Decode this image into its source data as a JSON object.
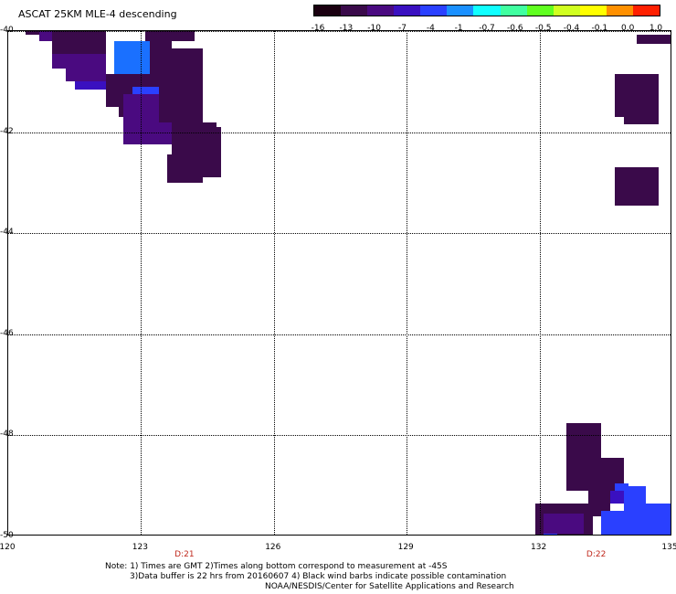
{
  "title": "ASCAT 25KM MLE-4 descending",
  "colorbar": {
    "labels": [
      "-16",
      "-13",
      "-10",
      "-7",
      "-4",
      "-1",
      "-0.7",
      "-0.6",
      "-0.5",
      "-0.4",
      "-0.1",
      "0.0",
      "1.0"
    ],
    "colors": [
      "#1a0010",
      "#3a0a4a",
      "#4a0a80",
      "#3a10c0",
      "#2a40ff",
      "#1a90ff",
      "#10ffff",
      "#40ffa0",
      "#60ff20",
      "#d0ff20",
      "#ffff00",
      "#ff9000",
      "#ff2000"
    ]
  },
  "axes": {
    "x_ticks": [
      "120",
      "123",
      "126",
      "129",
      "132",
      "135"
    ],
    "y_ticks": [
      "-40",
      "-42",
      "-44",
      "-46",
      "-48",
      "-50"
    ],
    "time_labels": [
      {
        "text": "D:21",
        "lon": 124.0
      },
      {
        "text": "D:22",
        "lon": 133.3
      }
    ]
  },
  "map_data": {
    "lon_range": [
      120,
      135
    ],
    "lat_range": [
      -40,
      -50
    ],
    "cells": [
      {
        "lon": [
          120.4,
          121.0
        ],
        "lat": [
          -40.0,
          -40.08
        ],
        "color": "#3a0a4a"
      },
      {
        "lon": [
          120.7,
          121.6
        ],
        "lat": [
          -40.0,
          -40.2
        ],
        "color": "#4a0a80"
      },
      {
        "lon": [
          121.0,
          122.2
        ],
        "lat": [
          -40.0,
          -40.45
        ],
        "color": "#3a0a4a"
      },
      {
        "lon": [
          121.0,
          122.2
        ],
        "lat": [
          -40.45,
          -40.75
        ],
        "color": "#4a0a80"
      },
      {
        "lon": [
          121.3,
          122.2
        ],
        "lat": [
          -40.75,
          -41.0
        ],
        "color": "#4a0a80"
      },
      {
        "lon": [
          121.5,
          122.2
        ],
        "lat": [
          -41.0,
          -41.15
        ],
        "color": "#3a10c0"
      },
      {
        "lon": [
          122.2,
          123.2
        ],
        "lat": [
          -40.85,
          -41.5
        ],
        "color": "#3a0a4a"
      },
      {
        "lon": [
          122.5,
          123.2
        ],
        "lat": [
          -41.5,
          -41.7
        ],
        "color": "#3a0a4a"
      },
      {
        "lon": [
          123.1,
          124.2
        ],
        "lat": [
          -40.0,
          -40.2
        ],
        "color": "#3a0a4a"
      },
      {
        "lon": [
          122.4,
          123.2
        ],
        "lat": [
          -40.2,
          -40.85
        ],
        "color": "#1a70ff"
      },
      {
        "lon": [
          123.2,
          123.7
        ],
        "lat": [
          -40.1,
          -41.1
        ],
        "color": "#3a0a4a"
      },
      {
        "lon": [
          123.4,
          124.4
        ],
        "lat": [
          -40.35,
          -41.0
        ],
        "color": "#3a0a4a"
      },
      {
        "lon": [
          122.8,
          123.8
        ],
        "lat": [
          -41.1,
          -41.25
        ],
        "color": "#2a40ff"
      },
      {
        "lon": [
          122.6,
          123.7
        ],
        "lat": [
          -41.25,
          -42.25
        ],
        "color": "#4a0a80"
      },
      {
        "lon": [
          123.4,
          124.4
        ],
        "lat": [
          -41.0,
          -41.8
        ],
        "color": "#3a0a4a"
      },
      {
        "lon": [
          123.7,
          124.7
        ],
        "lat": [
          -41.8,
          -42.45
        ],
        "color": "#3a0a4a"
      },
      {
        "lon": [
          124.4,
          124.8
        ],
        "lat": [
          -41.9,
          -42.9
        ],
        "color": "#3a0a4a"
      },
      {
        "lon": [
          123.6,
          124.4
        ],
        "lat": [
          -42.45,
          -43.0
        ],
        "color": "#3a0a4a"
      },
      {
        "lon": [
          134.2,
          135.0
        ],
        "lat": [
          -40.08,
          -40.25
        ],
        "color": "#3a0a4a"
      },
      {
        "lon": [
          133.7,
          134.7
        ],
        "lat": [
          -40.85,
          -41.7
        ],
        "color": "#3a0a4a"
      },
      {
        "lon": [
          133.9,
          134.7
        ],
        "lat": [
          -41.7,
          -41.85
        ],
        "color": "#3a0a4a"
      },
      {
        "lon": [
          133.7,
          134.7
        ],
        "lat": [
          -42.7,
          -43.45
        ],
        "color": "#3a0a4a"
      },
      {
        "lon": [
          132.6,
          133.4
        ],
        "lat": [
          -47.75,
          -48.45
        ],
        "color": "#3a0a4a"
      },
      {
        "lon": [
          132.6,
          133.9
        ],
        "lat": [
          -48.45,
          -49.1
        ],
        "color": "#3a0a4a"
      },
      {
        "lon": [
          133.3,
          134.0
        ],
        "lat": [
          -49.1,
          -49.35
        ],
        "color": "#3a10c0"
      },
      {
        "lon": [
          131.9,
          133.2
        ],
        "lat": [
          -49.35,
          -50.2
        ],
        "color": "#3a0a4a"
      },
      {
        "lon": [
          132.1,
          133.0
        ],
        "lat": [
          -49.55,
          -49.95
        ],
        "color": "#4a0a80"
      },
      {
        "lon": [
          132.1,
          132.4
        ],
        "lat": [
          -49.95,
          -50.1
        ],
        "color": "#2a40ff"
      },
      {
        "lon": [
          132.6,
          133.2
        ],
        "lat": [
          -50.0,
          -50.2
        ],
        "color": "#3a0a4a"
      },
      {
        "lon": [
          133.1,
          133.6
        ],
        "lat": [
          -49.0,
          -49.6
        ],
        "color": "#3a0a4a"
      },
      {
        "lon": [
          133.4,
          133.9
        ],
        "lat": [
          -49.5,
          -50.1
        ],
        "color": "#2a40ff"
      },
      {
        "lon": [
          133.9,
          134.4
        ],
        "lat": [
          -49.0,
          -50.2
        ],
        "color": "#2a40ff"
      },
      {
        "lon": [
          134.2,
          135.0
        ],
        "lat": [
          -49.35,
          -50.2
        ],
        "color": "#2a40ff"
      },
      {
        "lon": [
          133.7,
          134.0
        ],
        "lat": [
          -48.95,
          -49.1
        ],
        "color": "#2a40ff"
      }
    ]
  },
  "notes": [
    "Note: 1) Times are GMT 2)Times along bottom correspond to measurement at -45S",
    "3)Data buffer is 22 hrs from 20160607 4) Black wind barbs indicate possible contamination",
    "NOAA/NESDIS/Center for Satellite Applications and Research"
  ]
}
